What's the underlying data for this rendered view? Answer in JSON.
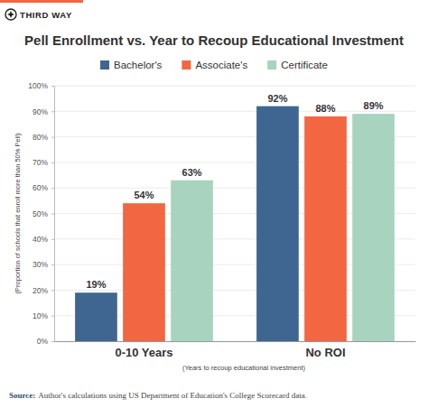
{
  "brand": "THIRD WAY",
  "chart_data": {
    "type": "bar",
    "title": "Pell Enrollment vs. Year to Recoup Educational Investment",
    "categories": [
      "0-10 Years",
      "No ROI"
    ],
    "series": [
      {
        "name": "Bachelor's",
        "color": "#3e6690",
        "values": [
          19,
          92
        ],
        "value_labels": [
          "19%",
          "92%"
        ]
      },
      {
        "name": "Associate's",
        "color": "#f26641",
        "values": [
          54,
          88
        ],
        "value_labels": [
          "54%",
          "88%"
        ]
      },
      {
        "name": "Certificate",
        "color": "#a8d3bf",
        "values": [
          63,
          89
        ],
        "value_labels": [
          "63%",
          "89%"
        ]
      }
    ],
    "x_label": "(Years to recoup educational investment)",
    "y_label": "(Proportion of schools that enroll more than 50% Pell)",
    "ylim": [
      0,
      100
    ],
    "yticks": [
      {
        "value": 0,
        "label": "0%"
      },
      {
        "value": 10,
        "label": "10%"
      },
      {
        "value": 20,
        "label": "20%"
      },
      {
        "value": 30,
        "label": "30%"
      },
      {
        "value": 40,
        "label": "40%"
      },
      {
        "value": 50,
        "label": "50%"
      },
      {
        "value": 60,
        "label": "60%"
      },
      {
        "value": 70,
        "label": "70%"
      },
      {
        "value": 80,
        "label": "80%"
      },
      {
        "value": 90,
        "label": "90%"
      },
      {
        "value": 100,
        "label": "100%"
      }
    ],
    "grid": true,
    "legend": "top",
    "data_labels": true
  },
  "source": {
    "label": "Source:",
    "text": "Author's calculations using US Department of Education's College Scorecard data."
  }
}
